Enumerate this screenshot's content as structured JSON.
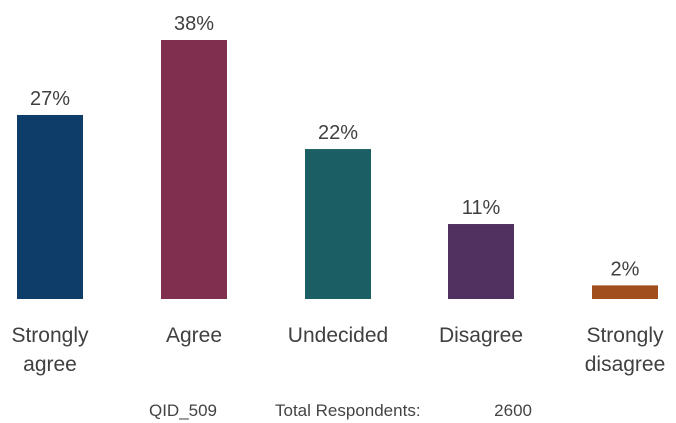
{
  "chart_data": {
    "type": "bar",
    "categories": [
      [
        "Strongly",
        "agree"
      ],
      [
        "Agree"
      ],
      [
        "Undecided"
      ],
      [
        "Disagree"
      ],
      [
        "Strongly",
        "disagree"
      ]
    ],
    "values": [
      27,
      38,
      22,
      11,
      2
    ],
    "value_labels": [
      "27%",
      "38%",
      "22%",
      "11%",
      "2%"
    ],
    "colors": [
      "#0e3d6a",
      "#80304e",
      "#1b5e63",
      "#51315f",
      "#a24f1e"
    ],
    "unit": "%",
    "ylim": [
      0,
      38
    ],
    "grid": false,
    "legend": "none"
  },
  "footer": {
    "qid": "QID_509",
    "respondents_label": "Total Respondents:",
    "respondents_value": "2600"
  }
}
